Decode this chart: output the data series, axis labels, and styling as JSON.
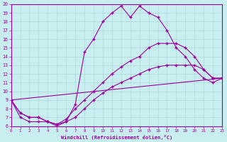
{
  "xlabel": "Windchill (Refroidissement éolien,°C)",
  "xlim": [
    0,
    23
  ],
  "ylim": [
    6,
    20
  ],
  "xticks": [
    0,
    1,
    2,
    3,
    4,
    5,
    6,
    7,
    8,
    9,
    10,
    11,
    12,
    13,
    14,
    15,
    16,
    17,
    18,
    19,
    20,
    21,
    22,
    23
  ],
  "yticks": [
    6,
    7,
    8,
    9,
    10,
    11,
    12,
    13,
    14,
    15,
    16,
    17,
    18,
    19,
    20
  ],
  "line_color": "#990099",
  "bg_color": "#c8eef0",
  "grid_color": "#b0d8d8",
  "line1": {
    "x": [
      0,
      1,
      2,
      3,
      4,
      5,
      6,
      7,
      8,
      9,
      10,
      11,
      12,
      13,
      14,
      15,
      16,
      17,
      18,
      19,
      20,
      21,
      22,
      23
    ],
    "y": [
      9,
      7,
      6.5,
      6.5,
      6.5,
      6,
      6.5,
      8.5,
      14.5,
      16.0,
      18,
      19,
      19.8,
      18.5,
      19.8,
      19.0,
      18.5,
      17.0,
      15.0,
      14.0,
      12.5,
      11.5,
      11.0,
      11.5
    ]
  },
  "line2": {
    "x": [
      0,
      23
    ],
    "y": [
      9,
      11.5
    ]
  },
  "line3": {
    "x": [
      0,
      1,
      2,
      3,
      4,
      5,
      6,
      7,
      8,
      9,
      10,
      11,
      12,
      13,
      14,
      15,
      16,
      17,
      18,
      19,
      20,
      21,
      22,
      23
    ],
    "y": [
      9,
      7.5,
      7.0,
      7.0,
      6.5,
      6.2,
      6.5,
      7.0,
      8.0,
      9.0,
      9.8,
      10.5,
      11.0,
      11.5,
      12.0,
      12.5,
      12.8,
      13.0,
      13.0,
      13.0,
      13.0,
      12.5,
      11.5,
      11.5
    ]
  },
  "line4": {
    "x": [
      0,
      1,
      2,
      3,
      4,
      5,
      6,
      7,
      8,
      9,
      10,
      11,
      12,
      13,
      14,
      15,
      16,
      17,
      18,
      19,
      20,
      21,
      22,
      23
    ],
    "y": [
      9,
      7.5,
      7.0,
      7.0,
      6.5,
      6.2,
      6.8,
      8.0,
      9.0,
      10.0,
      11.0,
      12.0,
      12.8,
      13.5,
      14.0,
      15.0,
      15.5,
      15.5,
      15.5,
      15.0,
      14.0,
      12.5,
      11.5,
      11.5
    ]
  }
}
